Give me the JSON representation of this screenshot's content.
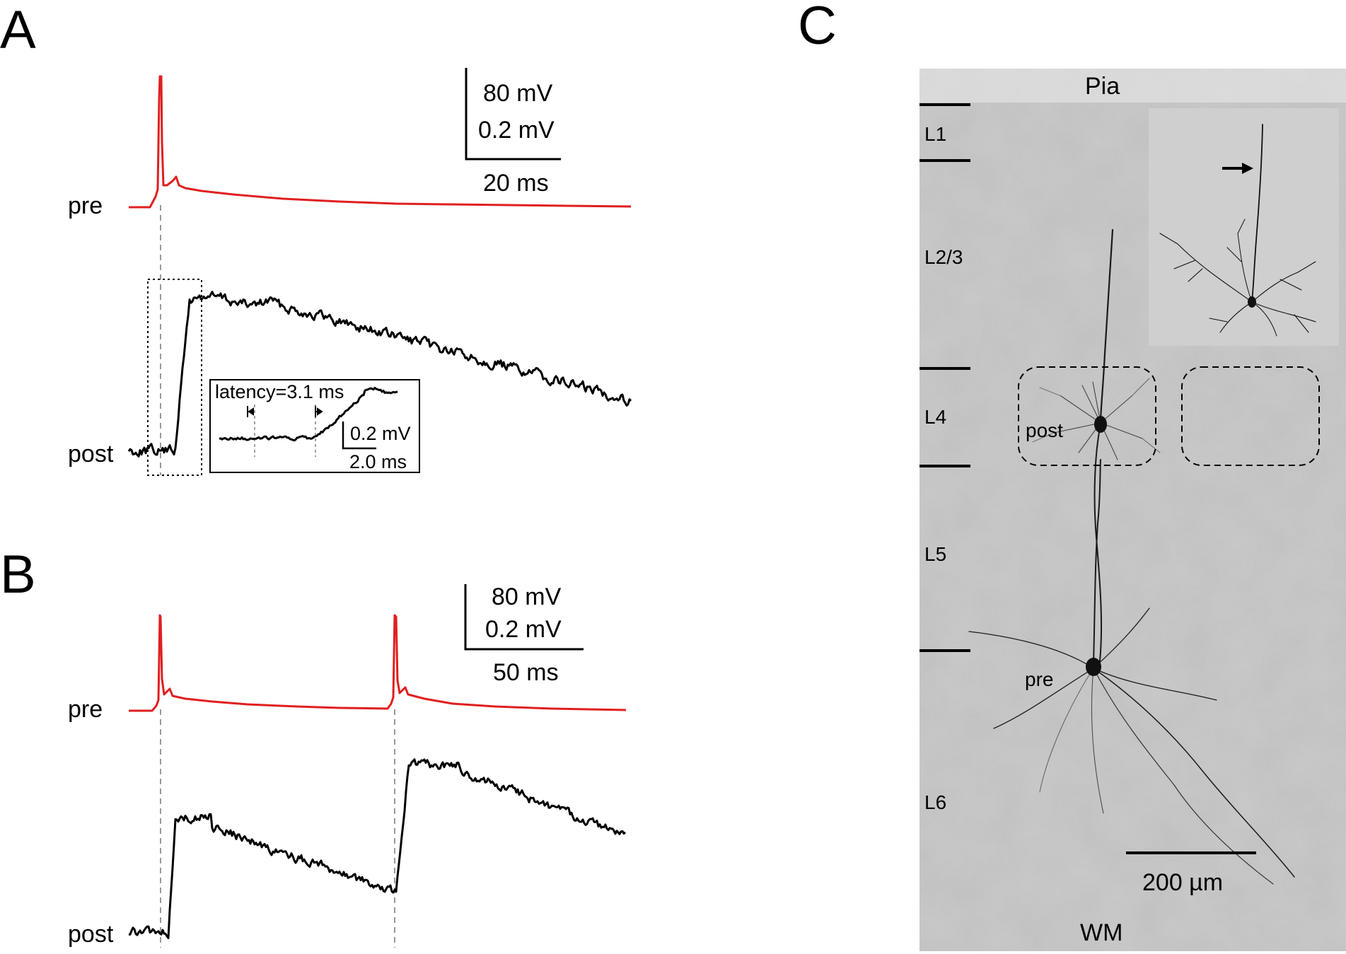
{
  "panels": {
    "A": {
      "letter": "A",
      "pre_label": "pre",
      "post_label": "post",
      "scale": {
        "v1": "80 mV",
        "v2": "0.2 mV",
        "t": "20 ms"
      },
      "inset": {
        "latency": "latency=3.1 ms",
        "v": "0.2 mV",
        "t": "2.0 ms"
      }
    },
    "B": {
      "letter": "B",
      "pre_label": "pre",
      "post_label": "post",
      "scale": {
        "v1": "80 mV",
        "v2": "0.2 mV",
        "t": "50 ms"
      }
    },
    "C": {
      "letter": "C",
      "pia": "Pia",
      "wm": "WM",
      "layers": [
        "L1",
        "L2/3",
        "L4",
        "L5",
        "L6"
      ],
      "cell_post": "post",
      "cell_pre": "pre",
      "scalebar": "200 µm"
    }
  },
  "colors": {
    "pre_trace": "#e01f1f",
    "post_trace": "#000000",
    "micrograph_bg": "#c9c9c9",
    "inset_bg": "#cfcfcf"
  }
}
